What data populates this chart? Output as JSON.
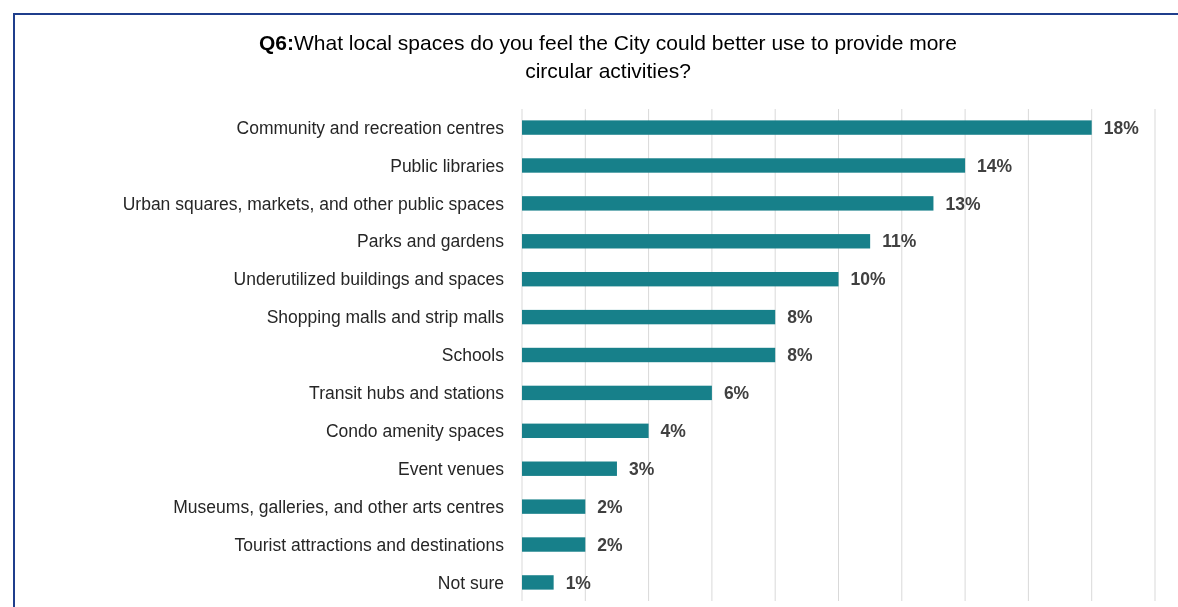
{
  "chart_data": {
    "type": "bar",
    "orientation": "horizontal",
    "title": "Q6:What local spaces do you feel the City could better use to provide more circular activities?",
    "categories": [
      "Community and recreation centres",
      "Public libraries",
      "Urban squares, markets, and other public spaces",
      "Parks and gardens",
      "Underutilized buildings and spaces",
      "Shopping malls and strip malls",
      "Schools",
      "Transit hubs and stations",
      "Condo amenity spaces",
      "Event venues",
      "Museums, galleries, and other arts centres",
      "Tourist attractions and destinations",
      "Not sure"
    ],
    "values": [
      18,
      14,
      13,
      11,
      10,
      8,
      8,
      6,
      4,
      3,
      2,
      2,
      1
    ],
    "value_labels": [
      "18%",
      "14%",
      "13%",
      "11%",
      "10%",
      "8%",
      "8%",
      "6%",
      "4%",
      "3%",
      "2%",
      "2%",
      "1%"
    ],
    "color": "#17808a",
    "xlim": [
      0,
      20
    ],
    "xticks": [
      {
        "value": 0,
        "label": null
      },
      {
        "value": 2,
        "label": null
      },
      {
        "value": 4,
        "label": null
      },
      {
        "value": 6,
        "label": null
      },
      {
        "value": 8,
        "label": null
      },
      {
        "value": 10,
        "label": null
      },
      {
        "value": 12,
        "label": null
      },
      {
        "value": 14,
        "label": null
      },
      {
        "value": 16,
        "label": null
      },
      {
        "value": 18,
        "label": null
      },
      {
        "value": 20,
        "label": null
      }
    ],
    "grid": "x",
    "tick_labels": "y"
  }
}
